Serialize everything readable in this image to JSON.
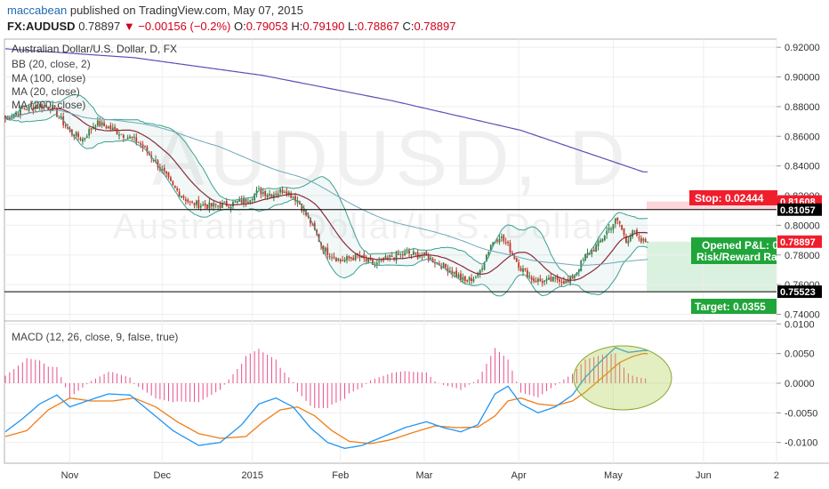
{
  "header": {
    "author": "maccabean",
    "published_text": "published on TradingView.com, May 07, 2015",
    "symbol": "FX:AUDUSD",
    "last": "0.78897",
    "change": "−0.00156 (−0.2%)",
    "o_label": "O:",
    "o_value": "0.79053",
    "h_label": "H:",
    "h_value": "0.79190",
    "l_label": "L:",
    "l_value": "0.78867",
    "c_label": "C:",
    "c_value": "0.78897"
  },
  "legend": {
    "title": "Australian Dollar/U.S. Dollar, D, FX",
    "items": [
      "BB (20, close, 2)",
      "MA (100, close)",
      "MA (20, close)",
      "MA (200, close)"
    ]
  },
  "watermark": {
    "symbol": "AUDUSD, D",
    "name": "Australian Dollar/U.S. Dollar"
  },
  "position": {
    "stop_label": "Stop: 0.02444",
    "opened_label": "Opened P&L: 0",
    "rr_label": "Risk/Reward Ra",
    "target_label": "Target: 0.0355"
  },
  "macd_label": "MACD (12, 26, close, 9, false, true)",
  "colors": {
    "up": "#3a7d44",
    "down": "#c0392b",
    "bb": "#3aa08f",
    "ma20": "#8b2a3a",
    "ma100": "#6fa7b8",
    "ma200": "#5b4fb5",
    "macd": "#2196f3",
    "signal": "#ef7d1a",
    "hist": "#e84f8a",
    "stop": "#f01e2c",
    "target": "#1fa53a"
  },
  "chart_data": {
    "type": "candlestick",
    "price_axis": {
      "ylim": [
        0.7355,
        0.9255
      ],
      "ticks": [
        0.92,
        0.9,
        0.88,
        0.86,
        0.84,
        0.82,
        0.8,
        0.78,
        0.76,
        0.74
      ],
      "tick_labels": [
        "0.92000",
        "0.90000",
        "0.88000",
        "0.86000",
        "0.84000",
        "0.82000",
        "0.80000",
        "0.78000",
        "0.76000",
        "0.74000"
      ]
    },
    "x_axis": {
      "labels": [
        "Nov",
        "Dec",
        "2015",
        "Feb",
        "Mar",
        "Apr",
        "May",
        "Jun",
        "2"
      ],
      "label_bar_index": [
        30,
        73,
        115,
        156,
        195,
        239,
        283,
        325,
        359
      ]
    },
    "bar_count": 300,
    "levels": [
      {
        "name": "stop",
        "value": 0.81608,
        "label": "0.81608"
      },
      {
        "name": "entry",
        "value": 0.81057,
        "label": "0.81057"
      },
      {
        "name": "last",
        "value": 0.78897,
        "label": "0.78897"
      },
      {
        "name": "target",
        "value": 0.75523,
        "label": "0.75523"
      }
    ],
    "close_anchors": [
      [
        0,
        0.872
      ],
      [
        8,
        0.878
      ],
      [
        16,
        0.881
      ],
      [
        22,
        0.879
      ],
      [
        30,
        0.863
      ],
      [
        36,
        0.858
      ],
      [
        42,
        0.869
      ],
      [
        48,
        0.866
      ],
      [
        55,
        0.861
      ],
      [
        62,
        0.856
      ],
      [
        70,
        0.843
      ],
      [
        78,
        0.826
      ],
      [
        86,
        0.815
      ],
      [
        95,
        0.813
      ],
      [
        104,
        0.814
      ],
      [
        112,
        0.817
      ],
      [
        118,
        0.823
      ],
      [
        124,
        0.821
      ],
      [
        130,
        0.824
      ],
      [
        136,
        0.817
      ],
      [
        142,
        0.802
      ],
      [
        148,
        0.784
      ],
      [
        156,
        0.776
      ],
      [
        164,
        0.779
      ],
      [
        172,
        0.773
      ],
      [
        180,
        0.779
      ],
      [
        188,
        0.781
      ],
      [
        196,
        0.779
      ],
      [
        202,
        0.774
      ],
      [
        208,
        0.769
      ],
      [
        214,
        0.762
      ],
      [
        220,
        0.766
      ],
      [
        226,
        0.787
      ],
      [
        230,
        0.793
      ],
      [
        234,
        0.786
      ],
      [
        240,
        0.771
      ],
      [
        246,
        0.763
      ],
      [
        252,
        0.762
      ],
      [
        258,
        0.764
      ],
      [
        262,
        0.761
      ],
      [
        266,
        0.769
      ],
      [
        270,
        0.779
      ],
      [
        276,
        0.787
      ],
      [
        280,
        0.796
      ],
      [
        284,
        0.803
      ],
      [
        286,
        0.801
      ],
      [
        289,
        0.789
      ],
      [
        292,
        0.797
      ],
      [
        295,
        0.789
      ],
      [
        297,
        0.789
      ]
    ],
    "ma200_anchors": [
      [
        0,
        0.919
      ],
      [
        60,
        0.913
      ],
      [
        120,
        0.901
      ],
      [
        180,
        0.884
      ],
      [
        240,
        0.864
      ],
      [
        297,
        0.836
      ]
    ],
    "macd_axis": {
      "ylim": [
        -0.0135,
        0.0105
      ],
      "ticks": [
        0.01,
        0.005,
        0,
        -0.005,
        -0.01
      ],
      "tick_labels": [
        "0.0100",
        "0.0050",
        "0.0000",
        "-0.0050",
        "-0.0100"
      ]
    },
    "macd_anchors": [
      [
        0,
        -0.0082
      ],
      [
        8,
        -0.006
      ],
      [
        16,
        -0.0035
      ],
      [
        24,
        -0.002
      ],
      [
        30,
        -0.004
      ],
      [
        38,
        -0.003
      ],
      [
        48,
        -0.0018
      ],
      [
        58,
        -0.002
      ],
      [
        68,
        -0.005
      ],
      [
        78,
        -0.008
      ],
      [
        90,
        -0.0105
      ],
      [
        100,
        -0.01
      ],
      [
        110,
        -0.007
      ],
      [
        118,
        -0.0035
      ],
      [
        126,
        -0.0025
      ],
      [
        134,
        -0.004
      ],
      [
        142,
        -0.0075
      ],
      [
        150,
        -0.01
      ],
      [
        158,
        -0.011
      ],
      [
        166,
        -0.0105
      ],
      [
        176,
        -0.009
      ],
      [
        186,
        -0.0075
      ],
      [
        196,
        -0.0065
      ],
      [
        204,
        -0.0075
      ],
      [
        212,
        -0.0082
      ],
      [
        220,
        -0.007
      ],
      [
        228,
        -0.0018
      ],
      [
        234,
        -0.0005
      ],
      [
        240,
        -0.0035
      ],
      [
        248,
        -0.005
      ],
      [
        256,
        -0.004
      ],
      [
        264,
        -0.002
      ],
      [
        270,
        0.001
      ],
      [
        278,
        0.004
      ],
      [
        284,
        0.006
      ],
      [
        290,
        0.0052
      ],
      [
        297,
        0.0055
      ]
    ],
    "signal_anchors": [
      [
        0,
        -0.009
      ],
      [
        10,
        -0.008
      ],
      [
        20,
        -0.0045
      ],
      [
        30,
        -0.0025
      ],
      [
        40,
        -0.003
      ],
      [
        50,
        -0.003
      ],
      [
        60,
        -0.0025
      ],
      [
        70,
        -0.004
      ],
      [
        80,
        -0.0065
      ],
      [
        90,
        -0.0085
      ],
      [
        100,
        -0.0093
      ],
      [
        112,
        -0.009
      ],
      [
        120,
        -0.0065
      ],
      [
        128,
        -0.0045
      ],
      [
        136,
        -0.004
      ],
      [
        144,
        -0.0055
      ],
      [
        152,
        -0.008
      ],
      [
        160,
        -0.0098
      ],
      [
        170,
        -0.0102
      ],
      [
        180,
        -0.0095
      ],
      [
        190,
        -0.0083
      ],
      [
        200,
        -0.0072
      ],
      [
        210,
        -0.0075
      ],
      [
        220,
        -0.0074
      ],
      [
        228,
        -0.0055
      ],
      [
        234,
        -0.003
      ],
      [
        240,
        -0.0025
      ],
      [
        248,
        -0.0035
      ],
      [
        256,
        -0.0038
      ],
      [
        264,
        -0.003
      ],
      [
        270,
        -0.0015
      ],
      [
        278,
        0.001
      ],
      [
        286,
        0.0035
      ],
      [
        292,
        0.0045
      ],
      [
        297,
        0.005
      ]
    ]
  }
}
